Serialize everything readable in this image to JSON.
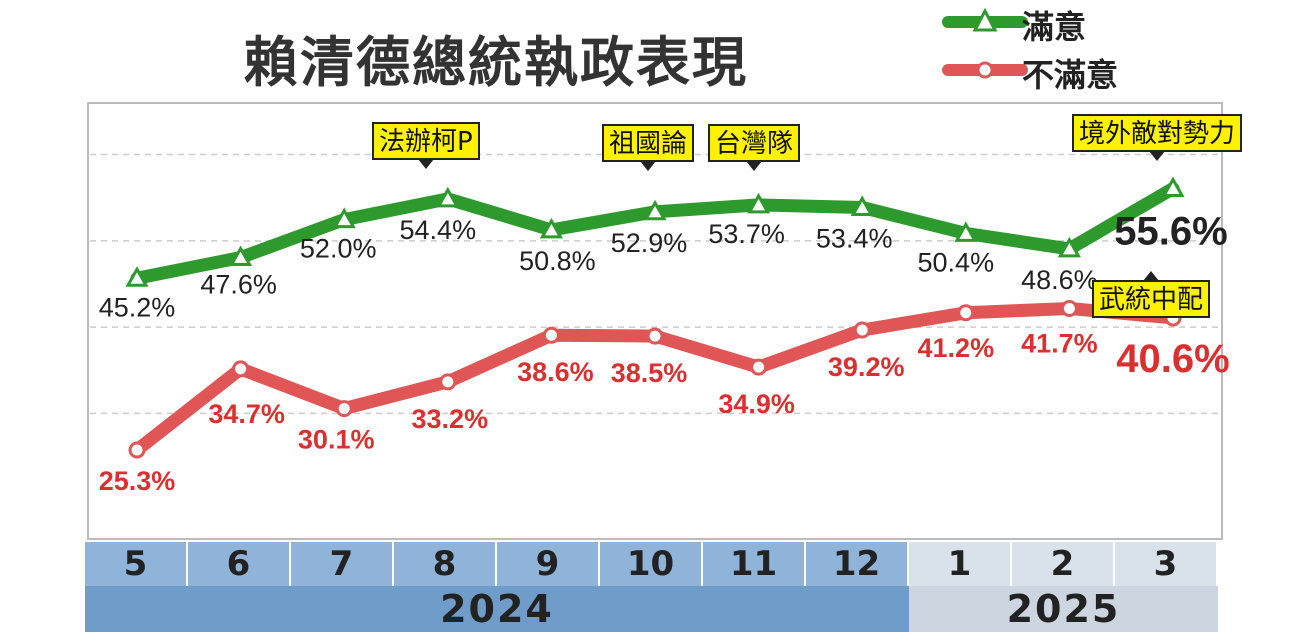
{
  "chart_data": {
    "type": "line",
    "title": "賴清德總統執政表現",
    "categories": [
      "5",
      "6",
      "7",
      "8",
      "9",
      "10",
      "11",
      "12",
      "1",
      "2",
      "3"
    ],
    "years": [
      {
        "label": "2024",
        "months": 8
      },
      {
        "label": "2025",
        "months": 3
      }
    ],
    "series": [
      {
        "name": "滿意",
        "values": [
          45.2,
          47.6,
          52.0,
          54.4,
          50.8,
          52.9,
          53.7,
          53.4,
          50.4,
          48.6,
          55.6
        ],
        "labels": [
          "45.2%",
          "47.6%",
          "52.0%",
          "54.4%",
          "50.8%",
          "52.9%",
          "53.7%",
          "53.4%",
          "50.4%",
          "48.6%",
          "55.6%"
        ],
        "color": "#2e9a2e",
        "marker": "triangle"
      },
      {
        "name": "不滿意",
        "values": [
          25.3,
          34.7,
          30.1,
          33.2,
          38.6,
          38.5,
          34.9,
          39.2,
          41.2,
          41.7,
          40.6
        ],
        "labels": [
          "25.3%",
          "34.7%",
          "30.1%",
          "33.2%",
          "38.6%",
          "38.5%",
          "34.9%",
          "39.2%",
          "41.2%",
          "41.7%",
          "40.6%"
        ],
        "color": "#e05555",
        "label_color": "#d93030",
        "marker": "circle"
      }
    ],
    "annotations": [
      {
        "text": "法辦柯P",
        "index": 3
      },
      {
        "text": "祖國論",
        "index": 5
      },
      {
        "text": "台灣隊",
        "index": 6
      },
      {
        "text": "境外敵對勢力",
        "index": 10
      },
      {
        "text": "武統中配",
        "index": 10
      }
    ],
    "ylim": [
      20,
      60
    ],
    "grid": true,
    "legend": "top-right",
    "colors": {
      "year_2024_bg": "#6f9cc9",
      "year_2025_bg": "#cdd6e0",
      "month_2024_bg": "#8fb3d9",
      "month_2025_bg": "#d9e1ea",
      "callout_bg": "#fff200"
    }
  }
}
